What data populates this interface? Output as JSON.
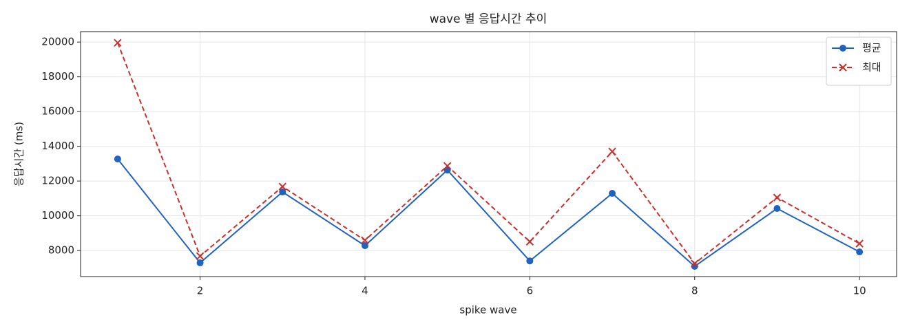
{
  "chart_data": {
    "type": "line",
    "title": "wave 별 응답시간 추이",
    "x_label": "spike wave",
    "y_label": "응답시간 (ms)",
    "x": [
      1,
      2,
      3,
      4,
      5,
      6,
      7,
      8,
      9,
      10
    ],
    "series": [
      {
        "name": "평균",
        "color": "#1f63bf",
        "marker": "circle",
        "dash": "solid",
        "values": [
          13270,
          7290,
          11370,
          8280,
          12630,
          7400,
          11290,
          7090,
          10420,
          7920
        ]
      },
      {
        "name": "최대",
        "color": "#c8302e",
        "marker": "x",
        "dash": "dashed",
        "values": [
          19960,
          7680,
          11680,
          8590,
          12870,
          8510,
          13700,
          7250,
          11050,
          8400
        ]
      }
    ],
    "xlim": [
      0.55,
      10.45
    ],
    "ylim": [
      6500,
      20600
    ],
    "xticks": [
      2,
      4,
      6,
      8,
      10
    ],
    "yticks": [
      8000,
      10000,
      12000,
      14000,
      16000,
      18000,
      20000
    ],
    "grid": true,
    "legend": "upper right"
  }
}
